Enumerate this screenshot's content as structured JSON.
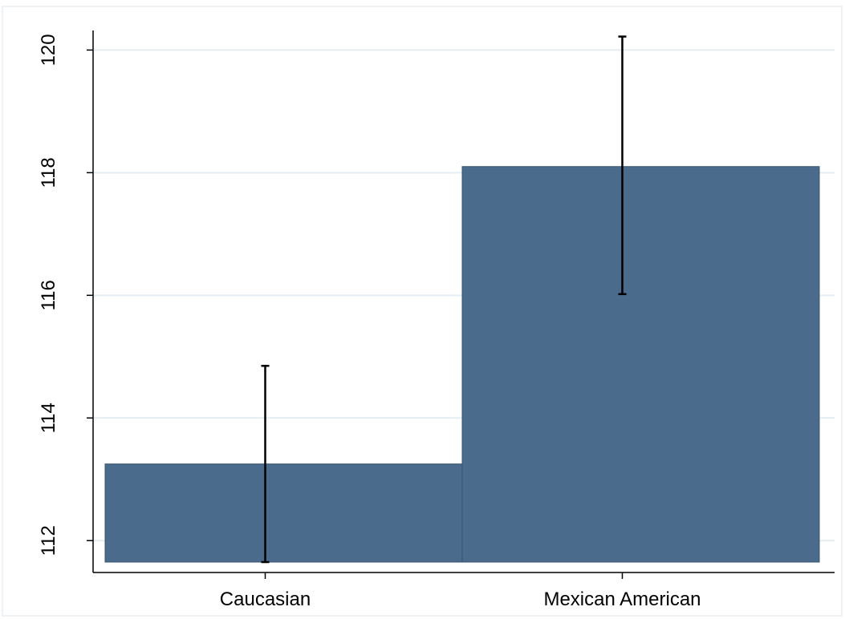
{
  "chart_data": {
    "type": "bar",
    "title": "",
    "xlabel": "",
    "ylabel": "",
    "categories": [
      "Caucasian",
      "Mexican American"
    ],
    "values": [
      113.25,
      118.1
    ],
    "error_bars": [
      {
        "low": 111.65,
        "high": 114.85
      },
      {
        "low": 116.02,
        "high": 120.22
      }
    ],
    "ylim": [
      111.65,
      120.45
    ],
    "yticks": [
      112,
      114,
      116,
      118,
      120
    ],
    "ytick_labels": [
      "112",
      "114",
      "116",
      "118",
      "120"
    ],
    "grid": true,
    "legend": "none",
    "colors": {
      "bar": "#4a6b8c",
      "bar_edge": "#3b5570",
      "grid": "#e4eef2",
      "error_bar": "#000000",
      "axis": "#000000",
      "frame": "#e8eef0"
    }
  }
}
